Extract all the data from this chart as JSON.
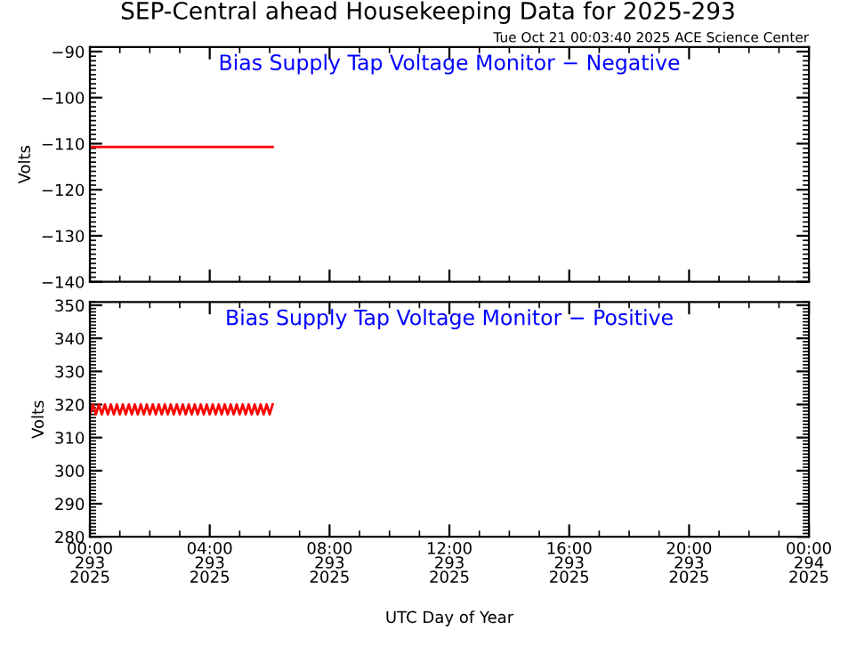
{
  "chart_data": [
    {
      "type": "line",
      "title": "Bias Supply Tap Voltage Monitor − Negative",
      "ylabel": "Volts",
      "annotations": [
        "SEP-Central ahead Housekeeping Data for 2025-293",
        "Tue Oct 21 00:03:40 2025 ACE Science Center"
      ],
      "series": [
        {
          "color": "#ff0000",
          "x": [
            "2025-10-20T00:00",
            "2025-10-20T06:06"
          ],
          "values": [
            -110.7,
            -110.7
          ]
        }
      ],
      "xlim": [
        "2025-10-20T00:00",
        "2025-10-21T00:00"
      ],
      "xticks": [
        {
          "value": "2025-10-20T00:00",
          "label": null
        },
        {
          "value": "2025-10-20T04:00",
          "label": null
        },
        {
          "value": "2025-10-20T08:00",
          "label": null
        },
        {
          "value": "2025-10-20T12:00",
          "label": null
        },
        {
          "value": "2025-10-20T16:00",
          "label": null
        },
        {
          "value": "2025-10-20T20:00",
          "label": null
        },
        {
          "value": "2025-10-21T00:00",
          "label": null
        }
      ],
      "ylim": [
        -140,
        -89
      ],
      "yticks": [
        -140,
        -130,
        -120,
        -110,
        -100,
        -90
      ],
      "tick_labels": "y"
    },
    {
      "type": "line",
      "title": "Bias Supply Tap Voltage Monitor − Positive",
      "ylabel": "Volts",
      "xlabel": "UTC Day of Year",
      "series": [
        {
          "color": "#ff0000",
          "x": [
            "2025-10-20T00:00",
            "2025-10-20T00:06",
            "2025-10-20T00:12",
            "2025-10-20T00:18",
            "2025-10-20T00:24",
            "2025-10-20T00:30",
            "2025-10-20T00:36",
            "2025-10-20T00:42",
            "2025-10-20T00:48",
            "2025-10-20T00:54",
            "2025-10-20T01:00",
            "2025-10-20T01:06",
            "2025-10-20T01:12",
            "2025-10-20T01:18",
            "2025-10-20T01:24",
            "2025-10-20T01:30",
            "2025-10-20T01:36",
            "2025-10-20T01:42",
            "2025-10-20T01:48",
            "2025-10-20T01:54",
            "2025-10-20T02:00",
            "2025-10-20T02:06",
            "2025-10-20T02:12",
            "2025-10-20T02:18",
            "2025-10-20T02:24",
            "2025-10-20T02:30",
            "2025-10-20T02:36",
            "2025-10-20T02:42",
            "2025-10-20T02:48",
            "2025-10-20T02:54",
            "2025-10-20T03:00",
            "2025-10-20T03:06",
            "2025-10-20T03:12",
            "2025-10-20T03:18",
            "2025-10-20T03:24",
            "2025-10-20T03:30",
            "2025-10-20T03:36",
            "2025-10-20T03:42",
            "2025-10-20T03:48",
            "2025-10-20T03:54",
            "2025-10-20T04:00",
            "2025-10-20T04:06",
            "2025-10-20T04:12",
            "2025-10-20T04:18",
            "2025-10-20T04:24",
            "2025-10-20T04:30",
            "2025-10-20T04:36",
            "2025-10-20T04:42",
            "2025-10-20T04:48",
            "2025-10-20T04:54",
            "2025-10-20T05:00",
            "2025-10-20T05:06",
            "2025-10-20T05:12",
            "2025-10-20T05:18",
            "2025-10-20T05:24",
            "2025-10-20T05:30",
            "2025-10-20T05:36",
            "2025-10-20T05:42",
            "2025-10-20T05:48",
            "2025-10-20T05:54",
            "2025-10-20T06:00",
            "2025-10-20T06:06"
          ],
          "values": [
            317,
            320,
            317,
            320,
            317,
            320,
            317,
            320,
            317,
            320,
            317,
            320,
            317,
            320,
            317,
            320,
            317,
            320,
            317,
            320,
            317,
            320,
            317,
            320,
            317,
            320,
            317,
            320,
            317,
            320,
            317,
            320,
            317,
            320,
            317,
            320,
            317,
            320,
            317,
            320,
            317,
            320,
            317,
            320,
            317,
            320,
            317,
            320,
            317,
            320,
            317,
            320,
            317,
            320,
            317,
            320,
            317,
            320,
            317,
            320,
            317,
            320
          ]
        }
      ],
      "xlim": [
        "2025-10-20T00:00",
        "2025-10-21T00:00"
      ],
      "xticks": [
        {
          "value": "2025-10-20T00:00",
          "label": "00:00\n293\n2025"
        },
        {
          "value": "2025-10-20T04:00",
          "label": "04:00\n293\n2025"
        },
        {
          "value": "2025-10-20T08:00",
          "label": "08:00\n293\n2025"
        },
        {
          "value": "2025-10-20T12:00",
          "label": "12:00\n293\n2025"
        },
        {
          "value": "2025-10-20T16:00",
          "label": "16:00\n293\n2025"
        },
        {
          "value": "2025-10-20T20:00",
          "label": "20:00\n293\n2025"
        },
        {
          "value": "2025-10-21T00:00",
          "label": "00:00\n294\n2025"
        }
      ],
      "ylim": [
        280,
        351
      ],
      "yticks": [
        280,
        290,
        300,
        310,
        320,
        330,
        340,
        350
      ]
    }
  ]
}
